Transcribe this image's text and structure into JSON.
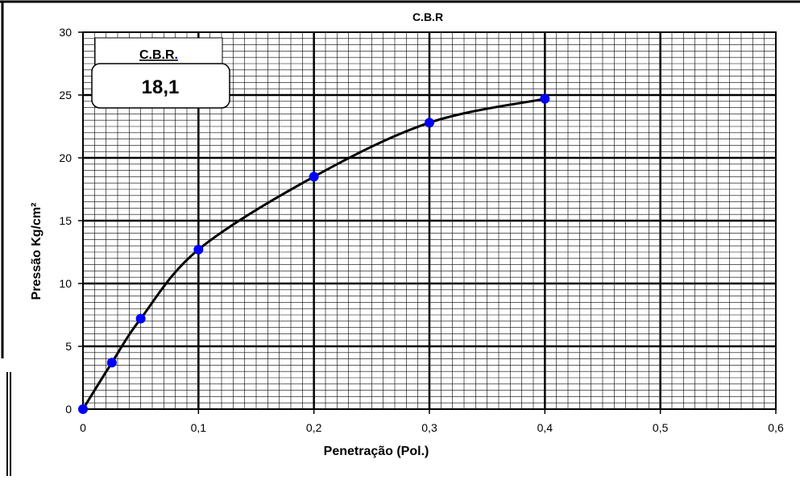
{
  "chart_data": {
    "type": "line",
    "title": "C.B.R",
    "xlabel": "Penetração (Pol.)",
    "ylabel": "Pressão Kg/cm²",
    "xlim": [
      0,
      0.6
    ],
    "ylim": [
      0,
      30
    ],
    "x_ticks": [
      "0",
      "0,1",
      "0,2",
      "0,3",
      "0,4",
      "0,5",
      "0,6"
    ],
    "y_ticks": [
      "0",
      "5",
      "10",
      "15",
      "20",
      "25",
      "30"
    ],
    "grid": true,
    "series": [
      {
        "x": [
          0,
          0.025,
          0.05,
          0.1,
          0.2,
          0.3,
          0.4
        ],
        "y": [
          0,
          3.7,
          7.2,
          12.7,
          18.5,
          22.8,
          24.7
        ],
        "marker_color": "#0000FF",
        "line_color": "#000000"
      }
    ]
  },
  "cbr_box": {
    "label": "C.B.R",
    "label_dot": ".",
    "value": "18,1"
  }
}
